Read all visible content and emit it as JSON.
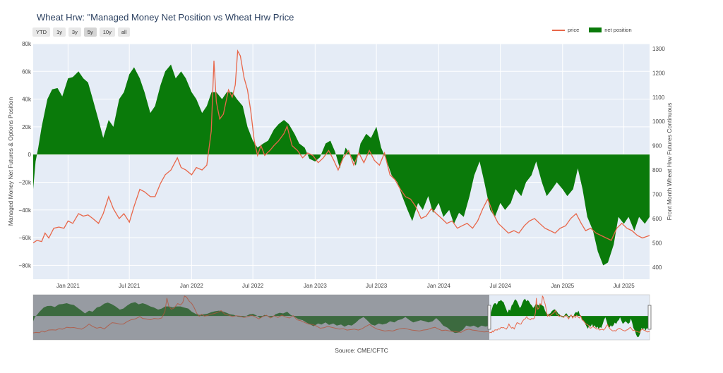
{
  "title": "Wheat Hrw: \"Managed Money Net Position vs Wheat Hrw Price",
  "range_buttons": [
    "YTD",
    "1y",
    "3y",
    "5y",
    "10y",
    "all"
  ],
  "active_range": "5y",
  "source": "Source: CME/CFTC",
  "colors": {
    "price": "#e8674a",
    "net": "#0a7a0a",
    "plot_bg": "#e5ecf6",
    "range_shade": "#8a8d93"
  },
  "chart_data": {
    "type": "area",
    "xlabel": "",
    "ylabel": "Managed Money Net Futures & Options Position",
    "y2label": "Front Month Wheat Hrw Futures Continuous",
    "x_range": [
      "2020-09-20",
      "2025-09-15"
    ],
    "ylim": [
      -90000,
      80000
    ],
    "y2lim": [
      350,
      1320
    ],
    "y_ticks": [
      80000,
      60000,
      40000,
      20000,
      0,
      -20000,
      -40000,
      -60000,
      -80000
    ],
    "y_tick_labels": [
      "80k",
      "60k",
      "40k",
      "20k",
      "0",
      "−20k",
      "−40k",
      "−60k",
      "−80k"
    ],
    "y2_ticks": [
      1300,
      1200,
      1100,
      1000,
      900,
      800,
      700,
      600,
      500,
      400
    ],
    "y2_tick_labels": [
      "1300",
      "1200",
      "1100",
      "1000",
      "900",
      "800",
      "700",
      "600",
      "500",
      "400"
    ],
    "x_ticks": [
      "2021-01-01",
      "2021-07-01",
      "2022-01-01",
      "2022-07-01",
      "2023-01-01",
      "2023-07-01",
      "2024-01-01",
      "2024-07-01",
      "2025-01-01",
      "2025-07-01"
    ],
    "x_tick_labels": [
      "Jan 2021",
      "Jul 2021",
      "Jan 2022",
      "Jul 2022",
      "Jan 2023",
      "Jul 2023",
      "Jan 2024",
      "Jul 2024",
      "Jan 2025",
      "Jul 2025"
    ],
    "legend_position": "top-right",
    "grid": true,
    "series": [
      {
        "name": "price",
        "axis": "y2",
        "points": [
          [
            "2020-09-20",
            500
          ],
          [
            "2020-10-01",
            510
          ],
          [
            "2020-10-15",
            505
          ],
          [
            "2020-10-25",
            540
          ],
          [
            "2020-11-05",
            520
          ],
          [
            "2020-11-20",
            560
          ],
          [
            "2020-12-05",
            565
          ],
          [
            "2020-12-20",
            560
          ],
          [
            "2021-01-01",
            590
          ],
          [
            "2021-01-15",
            580
          ],
          [
            "2021-02-01",
            620
          ],
          [
            "2021-02-15",
            610
          ],
          [
            "2021-03-01",
            615
          ],
          [
            "2021-03-15",
            600
          ],
          [
            "2021-04-01",
            580
          ],
          [
            "2021-04-15",
            620
          ],
          [
            "2021-05-01",
            690
          ],
          [
            "2021-05-15",
            640
          ],
          [
            "2021-06-01",
            600
          ],
          [
            "2021-06-15",
            620
          ],
          [
            "2021-07-01",
            585
          ],
          [
            "2021-07-15",
            650
          ],
          [
            "2021-08-01",
            720
          ],
          [
            "2021-08-15",
            710
          ],
          [
            "2021-09-01",
            690
          ],
          [
            "2021-09-15",
            690
          ],
          [
            "2021-10-01",
            745
          ],
          [
            "2021-10-15",
            780
          ],
          [
            "2021-11-01",
            800
          ],
          [
            "2021-11-20",
            850
          ],
          [
            "2021-12-01",
            810
          ],
          [
            "2021-12-15",
            800
          ],
          [
            "2022-01-01",
            780
          ],
          [
            "2022-01-15",
            810
          ],
          [
            "2022-02-01",
            800
          ],
          [
            "2022-02-15",
            820
          ],
          [
            "2022-02-28",
            960
          ],
          [
            "2022-03-08",
            1250
          ],
          [
            "2022-03-15",
            1080
          ],
          [
            "2022-03-25",
            1010
          ],
          [
            "2022-04-05",
            1030
          ],
          [
            "2022-04-20",
            1130
          ],
          [
            "2022-05-01",
            1100
          ],
          [
            "2022-05-10",
            1150
          ],
          [
            "2022-05-17",
            1290
          ],
          [
            "2022-05-25",
            1270
          ],
          [
            "2022-06-05",
            1180
          ],
          [
            "2022-06-15",
            1130
          ],
          [
            "2022-06-25",
            1040
          ],
          [
            "2022-07-05",
            920
          ],
          [
            "2022-07-15",
            860
          ],
          [
            "2022-07-25",
            900
          ],
          [
            "2022-08-05",
            860
          ],
          [
            "2022-08-20",
            880
          ],
          [
            "2022-09-01",
            900
          ],
          [
            "2022-09-15",
            920
          ],
          [
            "2022-10-01",
            950
          ],
          [
            "2022-10-10",
            980
          ],
          [
            "2022-10-25",
            900
          ],
          [
            "2022-11-10",
            880
          ],
          [
            "2022-11-25",
            850
          ],
          [
            "2022-12-10",
            870
          ],
          [
            "2022-12-25",
            860
          ],
          [
            "2023-01-10",
            830
          ],
          [
            "2023-01-25",
            850
          ],
          [
            "2023-02-10",
            880
          ],
          [
            "2023-02-25",
            840
          ],
          [
            "2023-03-10",
            800
          ],
          [
            "2023-03-25",
            850
          ],
          [
            "2023-04-10",
            880
          ],
          [
            "2023-04-25",
            820
          ],
          [
            "2023-05-10",
            870
          ],
          [
            "2023-05-25",
            830
          ],
          [
            "2023-06-10",
            880
          ],
          [
            "2023-06-25",
            840
          ],
          [
            "2023-07-10",
            820
          ],
          [
            "2023-07-25",
            870
          ],
          [
            "2023-08-10",
            780
          ],
          [
            "2023-08-25",
            760
          ],
          [
            "2023-09-10",
            720
          ],
          [
            "2023-09-25",
            690
          ],
          [
            "2023-10-10",
            680
          ],
          [
            "2023-10-25",
            650
          ],
          [
            "2023-11-10",
            600
          ],
          [
            "2023-11-25",
            610
          ],
          [
            "2023-12-10",
            640
          ],
          [
            "2023-12-25",
            620
          ],
          [
            "2024-01-10",
            600
          ],
          [
            "2024-01-25",
            580
          ],
          [
            "2024-02-10",
            590
          ],
          [
            "2024-02-25",
            560
          ],
          [
            "2024-03-10",
            570
          ],
          [
            "2024-03-25",
            580
          ],
          [
            "2024-04-10",
            560
          ],
          [
            "2024-04-25",
            590
          ],
          [
            "2024-05-10",
            640
          ],
          [
            "2024-05-25",
            680
          ],
          [
            "2024-06-10",
            620
          ],
          [
            "2024-06-25",
            580
          ],
          [
            "2024-07-10",
            560
          ],
          [
            "2024-07-25",
            540
          ],
          [
            "2024-08-10",
            550
          ],
          [
            "2024-08-25",
            540
          ],
          [
            "2024-09-10",
            570
          ],
          [
            "2024-09-25",
            590
          ],
          [
            "2024-10-10",
            600
          ],
          [
            "2024-10-25",
            580
          ],
          [
            "2024-11-10",
            560
          ],
          [
            "2024-11-25",
            550
          ],
          [
            "2024-12-10",
            540
          ],
          [
            "2024-12-25",
            560
          ],
          [
            "2025-01-10",
            570
          ],
          [
            "2025-01-25",
            600
          ],
          [
            "2025-02-10",
            620
          ],
          [
            "2025-02-25",
            580
          ],
          [
            "2025-03-10",
            550
          ],
          [
            "2025-03-25",
            560
          ],
          [
            "2025-04-10",
            540
          ],
          [
            "2025-04-25",
            530
          ],
          [
            "2025-05-10",
            520
          ],
          [
            "2025-05-25",
            510
          ],
          [
            "2025-06-10",
            560
          ],
          [
            "2025-06-25",
            580
          ],
          [
            "2025-07-10",
            560
          ],
          [
            "2025-07-25",
            550
          ],
          [
            "2025-08-10",
            530
          ],
          [
            "2025-08-25",
            520
          ],
          [
            "2025-09-15",
            530
          ]
        ]
      },
      {
        "name": "net position",
        "axis": "y",
        "points": [
          [
            "2020-09-20",
            -25000
          ],
          [
            "2020-09-27",
            -5000
          ],
          [
            "2020-10-05",
            5000
          ],
          [
            "2020-10-15",
            20000
          ],
          [
            "2020-11-01",
            40000
          ],
          [
            "2020-11-15",
            47000
          ],
          [
            "2020-12-01",
            48000
          ],
          [
            "2020-12-15",
            42000
          ],
          [
            "2021-01-01",
            55000
          ],
          [
            "2021-01-15",
            56000
          ],
          [
            "2021-02-01",
            60000
          ],
          [
            "2021-02-15",
            55000
          ],
          [
            "2021-03-01",
            52000
          ],
          [
            "2021-03-15",
            40000
          ],
          [
            "2021-04-01",
            25000
          ],
          [
            "2021-04-15",
            12000
          ],
          [
            "2021-05-01",
            25000
          ],
          [
            "2021-05-15",
            20000
          ],
          [
            "2021-06-01",
            40000
          ],
          [
            "2021-06-15",
            45000
          ],
          [
            "2021-07-01",
            58000
          ],
          [
            "2021-07-15",
            63000
          ],
          [
            "2021-08-01",
            55000
          ],
          [
            "2021-08-15",
            45000
          ],
          [
            "2021-09-01",
            30000
          ],
          [
            "2021-09-15",
            35000
          ],
          [
            "2021-10-01",
            50000
          ],
          [
            "2021-10-15",
            60000
          ],
          [
            "2021-11-01",
            65000
          ],
          [
            "2021-11-15",
            55000
          ],
          [
            "2021-12-01",
            60000
          ],
          [
            "2021-12-15",
            55000
          ],
          [
            "2022-01-01",
            45000
          ],
          [
            "2022-01-15",
            40000
          ],
          [
            "2022-02-01",
            30000
          ],
          [
            "2022-02-15",
            35000
          ],
          [
            "2022-03-01",
            45000
          ],
          [
            "2022-03-15",
            45000
          ],
          [
            "2022-04-01",
            40000
          ],
          [
            "2022-04-15",
            45000
          ],
          [
            "2022-05-01",
            45000
          ],
          [
            "2022-05-15",
            40000
          ],
          [
            "2022-06-01",
            35000
          ],
          [
            "2022-06-15",
            20000
          ],
          [
            "2022-07-01",
            10000
          ],
          [
            "2022-07-15",
            5000
          ],
          [
            "2022-08-01",
            8000
          ],
          [
            "2022-08-15",
            10000
          ],
          [
            "2022-09-01",
            18000
          ],
          [
            "2022-09-15",
            22000
          ],
          [
            "2022-10-01",
            25000
          ],
          [
            "2022-10-15",
            22000
          ],
          [
            "2022-11-01",
            15000
          ],
          [
            "2022-11-15",
            8000
          ],
          [
            "2022-12-01",
            5000
          ],
          [
            "2022-12-15",
            -3000
          ],
          [
            "2023-01-01",
            -5000
          ],
          [
            "2023-01-15",
            -2000
          ],
          [
            "2023-02-01",
            8000
          ],
          [
            "2023-02-15",
            10000
          ],
          [
            "2023-03-01",
            2000
          ],
          [
            "2023-03-15",
            -10000
          ],
          [
            "2023-04-01",
            5000
          ],
          [
            "2023-04-15",
            0
          ],
          [
            "2023-05-01",
            -8000
          ],
          [
            "2023-05-15",
            8000
          ],
          [
            "2023-06-01",
            15000
          ],
          [
            "2023-06-15",
            12000
          ],
          [
            "2023-07-01",
            20000
          ],
          [
            "2023-07-15",
            5000
          ],
          [
            "2023-08-01",
            -5000
          ],
          [
            "2023-08-15",
            -15000
          ],
          [
            "2023-09-01",
            -20000
          ],
          [
            "2023-09-15",
            -30000
          ],
          [
            "2023-10-01",
            -40000
          ],
          [
            "2023-10-15",
            -48000
          ],
          [
            "2023-11-01",
            -35000
          ],
          [
            "2023-11-15",
            -40000
          ],
          [
            "2023-12-01",
            -30000
          ],
          [
            "2023-12-15",
            -42000
          ],
          [
            "2024-01-01",
            -35000
          ],
          [
            "2024-01-15",
            -45000
          ],
          [
            "2024-02-01",
            -40000
          ],
          [
            "2024-02-15",
            -50000
          ],
          [
            "2024-03-01",
            -42000
          ],
          [
            "2024-03-15",
            -45000
          ],
          [
            "2024-04-01",
            -30000
          ],
          [
            "2024-04-15",
            -15000
          ],
          [
            "2024-05-01",
            -5000
          ],
          [
            "2024-05-15",
            -20000
          ],
          [
            "2024-06-01",
            -40000
          ],
          [
            "2024-06-15",
            -45000
          ],
          [
            "2024-07-01",
            -35000
          ],
          [
            "2024-07-15",
            -40000
          ],
          [
            "2024-08-01",
            -35000
          ],
          [
            "2024-08-15",
            -25000
          ],
          [
            "2024-09-01",
            -30000
          ],
          [
            "2024-09-15",
            -20000
          ],
          [
            "2024-10-01",
            -15000
          ],
          [
            "2024-10-15",
            -5000
          ],
          [
            "2024-11-01",
            -20000
          ],
          [
            "2024-11-15",
            -30000
          ],
          [
            "2024-12-01",
            -25000
          ],
          [
            "2024-12-15",
            -20000
          ],
          [
            "2025-01-01",
            -25000
          ],
          [
            "2025-01-15",
            -30000
          ],
          [
            "2025-02-01",
            -25000
          ],
          [
            "2025-02-15",
            -10000
          ],
          [
            "2025-03-01",
            -25000
          ],
          [
            "2025-03-15",
            -45000
          ],
          [
            "2025-04-01",
            -55000
          ],
          [
            "2025-04-15",
            -70000
          ],
          [
            "2025-05-01",
            -80000
          ],
          [
            "2025-05-15",
            -78000
          ],
          [
            "2025-06-01",
            -65000
          ],
          [
            "2025-06-15",
            -45000
          ],
          [
            "2025-07-01",
            -50000
          ],
          [
            "2025-07-15",
            -45000
          ],
          [
            "2025-08-01",
            -55000
          ],
          [
            "2025-08-15",
            -45000
          ],
          [
            "2025-09-01",
            -50000
          ],
          [
            "2025-09-15",
            -45000
          ]
        ]
      }
    ]
  }
}
